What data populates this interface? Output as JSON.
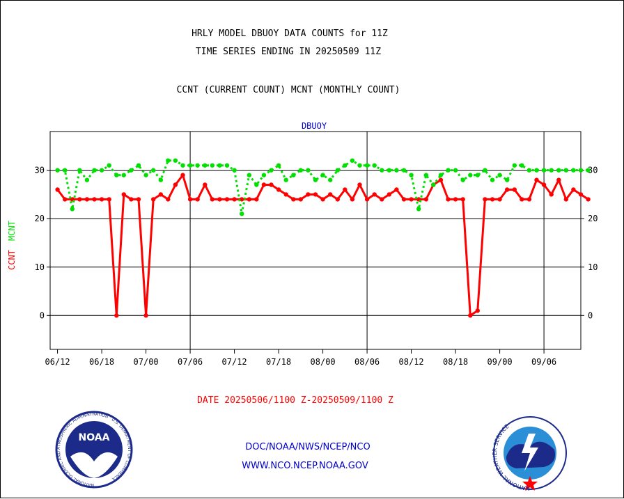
{
  "title_line1": "HRLY MODEL DBUOY DATA COUNTS for 11Z",
  "title_line2": "TIME SERIES ENDING IN 20250509 11Z",
  "subtitle": "CCNT (CURRENT COUNT) MCNT (MONTHLY COUNT)",
  "date_range": "DATE 20250506/1100 Z-20250509/1100 Z",
  "footer": {
    "org_path": "DOC/NOAA/NWS/NCEP/NCO",
    "website": "WWW.NCO.NCEP.NOAA.GOV"
  },
  "logos": {
    "noaa_text": "NOAA",
    "noaa_ring_text": "NATIONAL OCEANIC AND ATMOSPHERIC ADMINISTRATION · U.S. DEPARTMENT OF COMMERCE",
    "nws_ring_text": "NATIONAL WEATHER SERVICE"
  },
  "colors": {
    "ccnt": "#ff0000",
    "mcnt": "#00e000",
    "title": "#000000",
    "label_blue": "#0000cc",
    "date_red": "#ff0000"
  },
  "chart_data": {
    "type": "line",
    "title": "DBUOY",
    "ylabel_series": [
      "CCNT",
      "MCNT"
    ],
    "ylim": [
      -7,
      38
    ],
    "yticks": [
      0,
      10,
      20,
      30
    ],
    "xlim": [
      -1,
      71
    ],
    "xticks": [
      {
        "i": 0,
        "label": "06/12"
      },
      {
        "i": 6,
        "label": "06/18"
      },
      {
        "i": 12,
        "label": "07/00"
      },
      {
        "i": 18,
        "label": "07/06"
      },
      {
        "i": 24,
        "label": "07/12"
      },
      {
        "i": 30,
        "label": "07/18"
      },
      {
        "i": 36,
        "label": "08/00"
      },
      {
        "i": 42,
        "label": "08/06"
      },
      {
        "i": 48,
        "label": "08/12"
      },
      {
        "i": 54,
        "label": "08/18"
      },
      {
        "i": 60,
        "label": "09/00"
      },
      {
        "i": 66,
        "label": "09/06"
      }
    ],
    "day_boundaries": [
      18,
      42,
      66
    ],
    "grid": true,
    "series": [
      {
        "name": "CCNT",
        "color": "#ff0000",
        "values": [
          26,
          24,
          24,
          24,
          24,
          24,
          24,
          24,
          0,
          25,
          24,
          24,
          0,
          24,
          25,
          24,
          27,
          29,
          24,
          24,
          27,
          24,
          24,
          24,
          24,
          24,
          24,
          24,
          27,
          27,
          26,
          25,
          24,
          24,
          25,
          25,
          24,
          25,
          24,
          26,
          24,
          27,
          24,
          25,
          24,
          25,
          26,
          24,
          24,
          24,
          24,
          27,
          28,
          24,
          24,
          24,
          0,
          1,
          24,
          24,
          24,
          26,
          26,
          24,
          24,
          28,
          27,
          25,
          28,
          24,
          26,
          25,
          24
        ]
      },
      {
        "name": "MCNT",
        "color": "#00e000",
        "values": [
          30,
          30,
          22,
          30,
          28,
          30,
          30,
          31,
          29,
          29,
          30,
          31,
          29,
          30,
          28,
          32,
          32,
          31,
          31,
          31,
          31,
          31,
          31,
          31,
          30,
          21,
          29,
          27,
          29,
          30,
          31,
          28,
          29,
          30,
          30,
          28,
          29,
          28,
          30,
          31,
          32,
          31,
          31,
          31,
          30,
          30,
          30,
          30,
          29,
          22,
          29,
          27,
          29,
          30,
          30,
          28,
          29,
          29,
          30,
          28,
          29,
          28,
          31,
          31,
          30,
          30,
          30,
          30,
          30,
          30,
          30,
          30,
          30
        ]
      }
    ]
  }
}
